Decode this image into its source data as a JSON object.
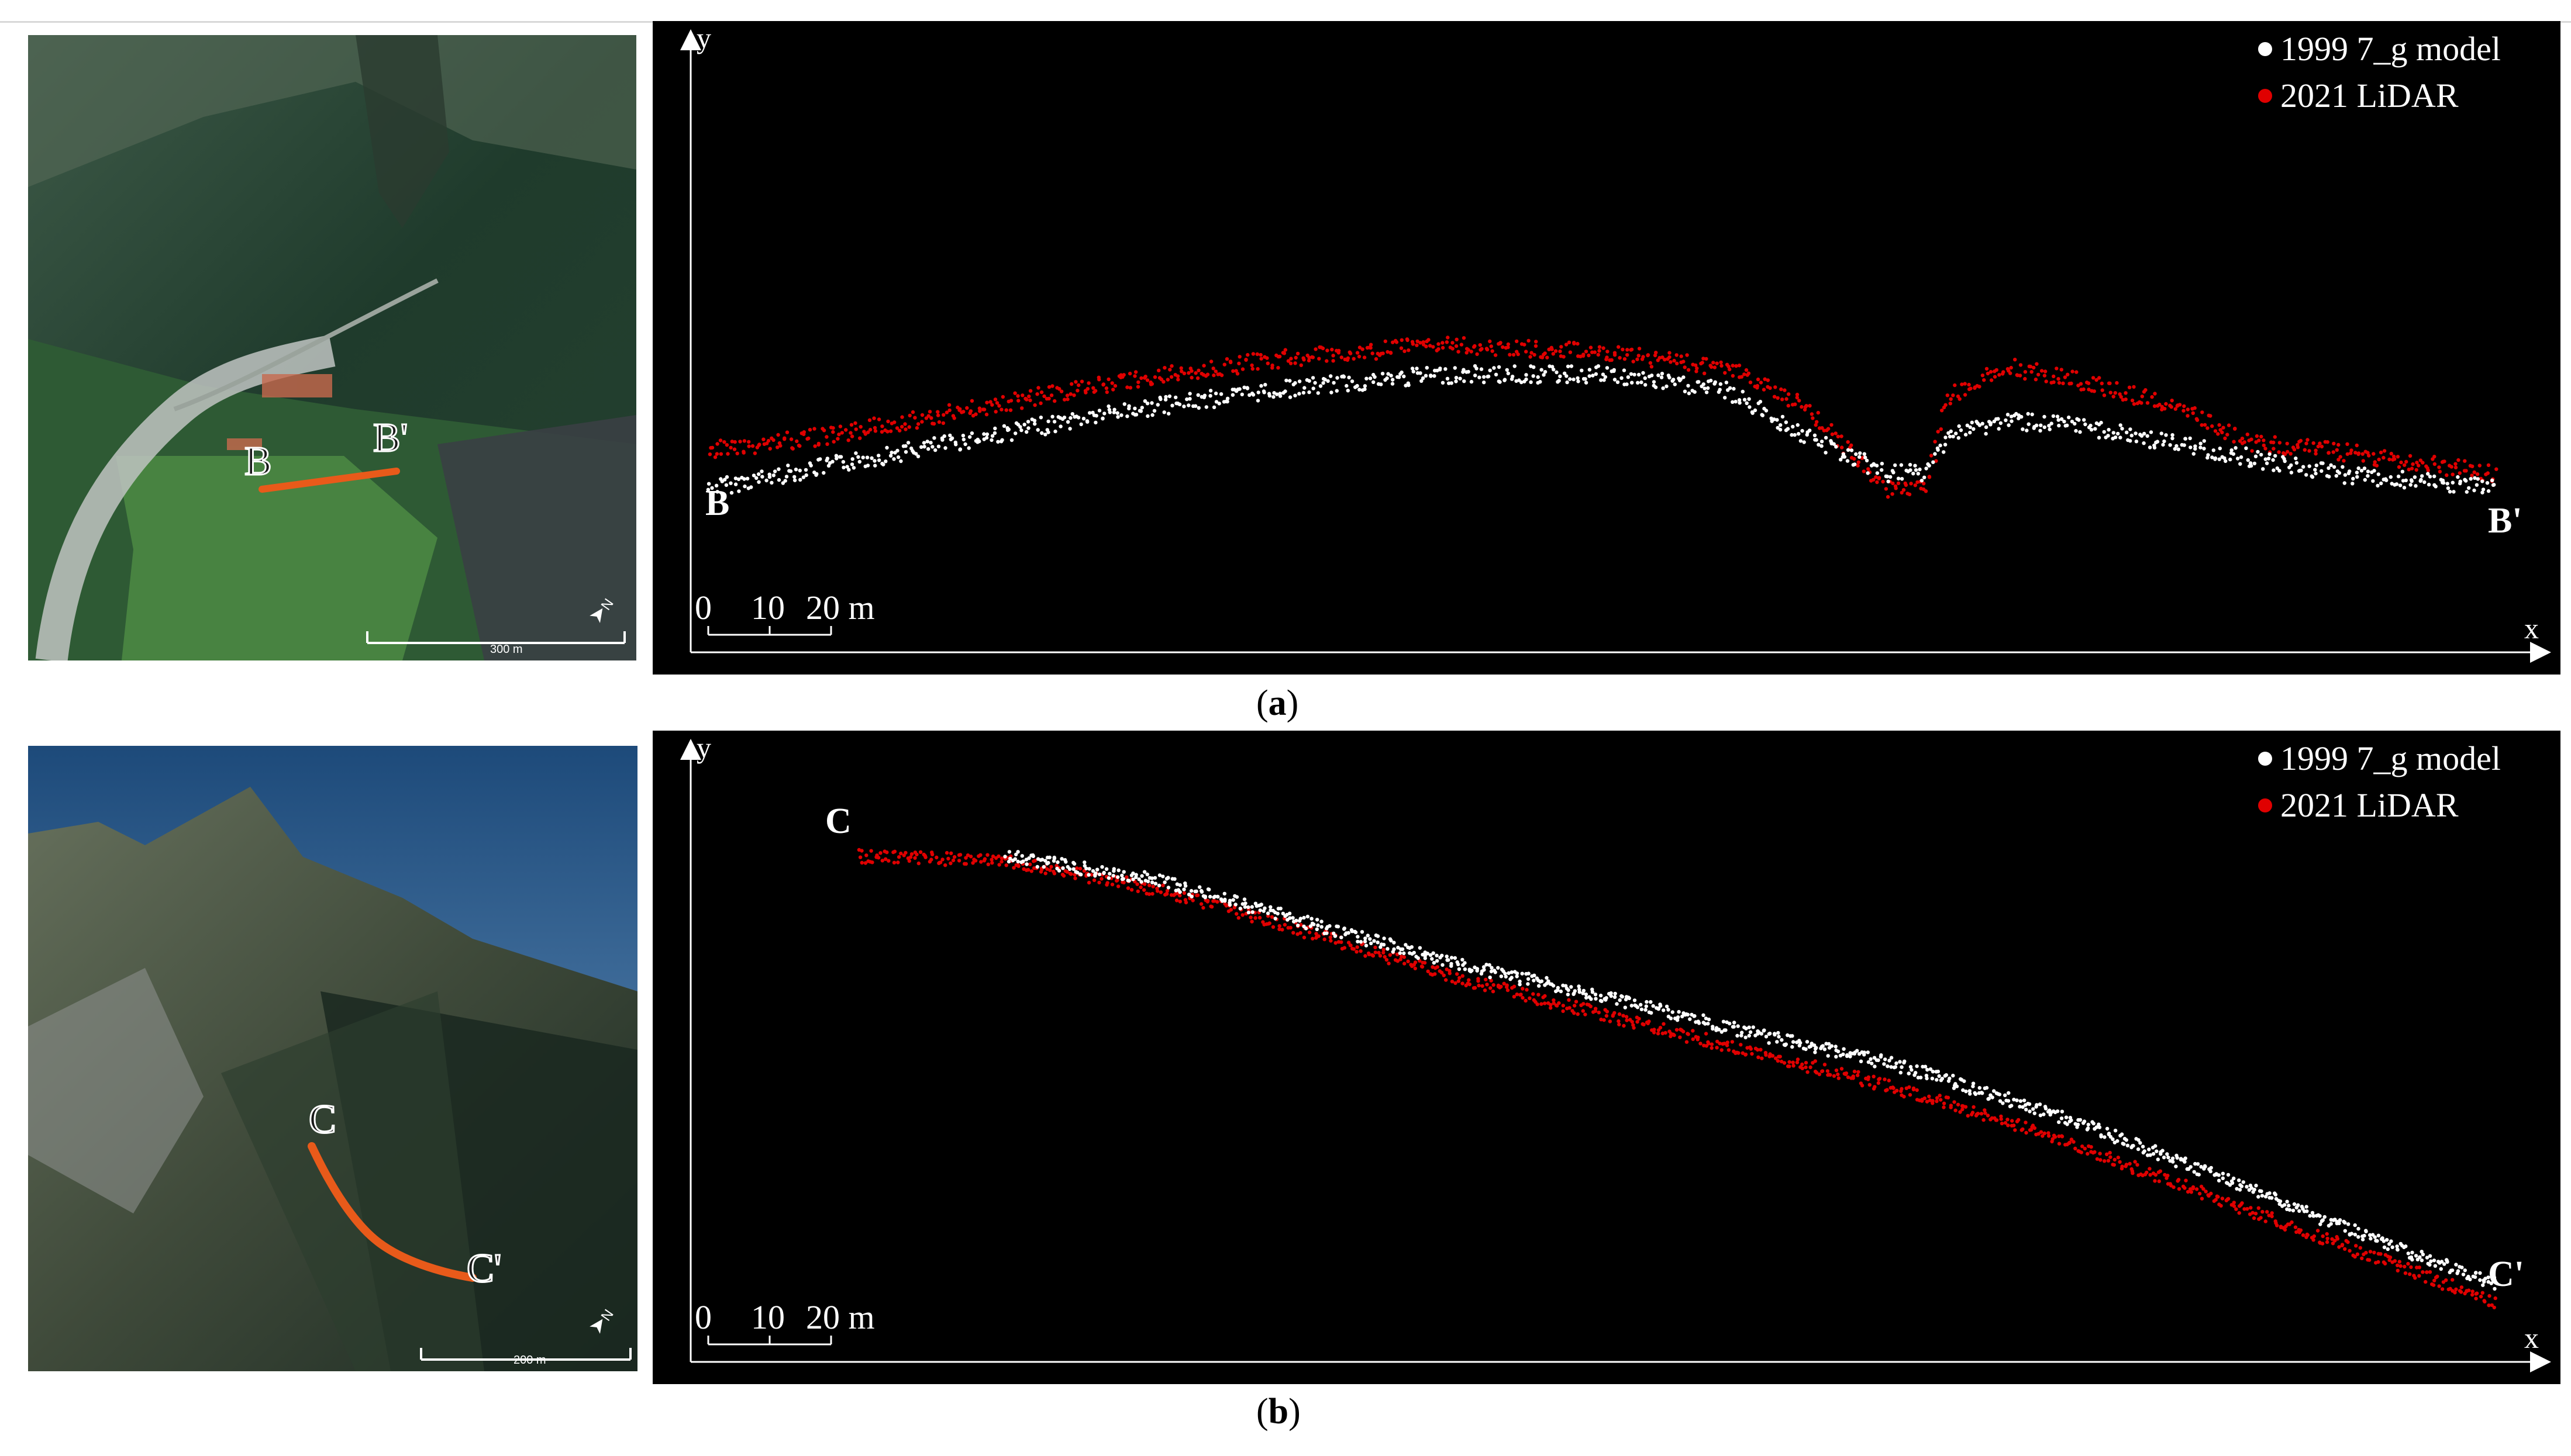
{
  "figure": {
    "panel_a": {
      "caption_letter": "a",
      "map": {
        "start_label": "B",
        "end_label": "B'",
        "scale_text": "300 m",
        "north_label": "N",
        "route_color": "#e85a1a"
      },
      "plot": {
        "axis_x": "x",
        "axis_y": "y",
        "start_label": "B",
        "end_label": "B'",
        "scale": {
          "ticks": [
            "0",
            "10",
            "20 m"
          ]
        },
        "legend": [
          {
            "label": "1999 7_g model",
            "color": "#ffffff"
          },
          {
            "label": "2021 LiDAR",
            "color": "#e00000"
          }
        ]
      }
    },
    "panel_b": {
      "caption_letter": "b",
      "map": {
        "start_label": "C",
        "end_label": "C'",
        "scale_text": "200 m",
        "north_label": "N",
        "route_color": "#e85a1a"
      },
      "plot": {
        "axis_x": "x",
        "axis_y": "y",
        "start_label": "C",
        "end_label": "C'",
        "scale": {
          "ticks": [
            "0",
            "10",
            "20 m"
          ]
        },
        "legend": [
          {
            "label": "1999 7_g model",
            "color": "#ffffff"
          },
          {
            "label": "2021 LiDAR",
            "color": "#e00000"
          }
        ]
      }
    }
  },
  "chart_data": [
    {
      "type": "scatter",
      "title": "",
      "xlabel": "x",
      "ylabel": "y",
      "series": [
        {
          "name": "1999 7_g model",
          "color": "#ffffff",
          "x": [
            0,
            30,
            60,
            100,
            140,
            180,
            220,
            250,
            270,
            290,
            300,
            305,
            320,
            340,
            360,
            380,
            400,
            440
          ],
          "y": [
            0,
            3,
            6,
            10,
            13,
            15,
            15,
            13,
            7,
            2,
            2,
            7,
            9,
            8,
            6,
            4,
            2,
            0
          ]
        },
        {
          "name": "2021 LiDAR",
          "color": "#e00000",
          "x": [
            0,
            30,
            60,
            100,
            140,
            180,
            220,
            250,
            270,
            290,
            300,
            305,
            320,
            340,
            360,
            380,
            400,
            440
          ],
          "y": [
            5,
            7,
            10,
            14,
            17,
            19,
            18,
            16,
            11,
            0,
            0,
            12,
            16,
            14,
            11,
            6,
            5,
            2
          ]
        }
      ]
    },
    {
      "type": "scatter",
      "title": "",
      "xlabel": "x",
      "ylabel": "y",
      "series": [
        {
          "name": "1999 7_g model",
          "color": "#ffffff",
          "x": [
            40,
            80,
            120,
            160,
            200,
            240,
            280,
            320,
            360,
            400,
            440
          ],
          "y": [
            100,
            95,
            86,
            77,
            70,
            62,
            55,
            45,
            33,
            20,
            8
          ]
        },
        {
          "name": "2021 LiDAR",
          "color": "#e00000",
          "x": [
            0,
            40,
            80,
            120,
            160,
            200,
            240,
            280,
            320,
            360,
            400,
            440
          ],
          "y": [
            100,
            99,
            93,
            84,
            74,
            66,
            58,
            50,
            40,
            28,
            16,
            4
          ]
        }
      ]
    }
  ]
}
